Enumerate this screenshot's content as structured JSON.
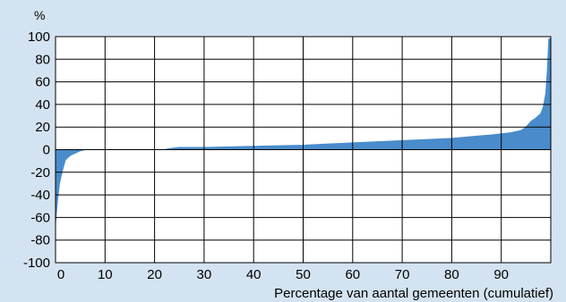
{
  "chart_data": {
    "type": "area",
    "title": "",
    "ylabel": "%",
    "xlabel": "Percentage van aantal gemeenten (cumulatief)",
    "xlim": [
      0,
      100
    ],
    "ylim": [
      -100,
      100
    ],
    "grid": true,
    "colors": {
      "background": "#d4e3f1",
      "plot": "#ffffff",
      "fill": "#4a8ccb",
      "grid": "#000000"
    },
    "x_ticks": [
      0,
      10,
      20,
      30,
      40,
      50,
      60,
      70,
      80,
      90
    ],
    "x_tick_labels": [
      "0",
      "10",
      "20",
      "30",
      "40",
      "50",
      "60",
      "70",
      "80",
      "90"
    ],
    "y_ticks": [
      100,
      80,
      60,
      40,
      20,
      0,
      -20,
      -40,
      -60,
      -80,
      -100
    ],
    "y_tick_labels": [
      "100",
      "80",
      "60",
      "40",
      "20",
      "0",
      "-20",
      "-40",
      "-60",
      "-80",
      "-100"
    ],
    "series": [
      {
        "x": [
          0,
          0.4,
          0.8,
          1.2,
          1.6,
          2,
          2.5,
          3,
          4,
          5,
          6,
          7,
          10,
          15,
          20,
          22,
          23,
          25,
          30,
          35,
          40,
          45,
          50,
          55,
          60,
          65,
          70,
          75,
          80,
          85,
          88,
          90,
          92,
          94,
          95,
          96,
          97,
          98,
          98.5,
          99,
          99.3,
          99.6,
          100
        ],
        "values": [
          -65,
          -45,
          -30,
          -22,
          -15,
          -9,
          -7,
          -5,
          -3,
          -1,
          0,
          0,
          0,
          0,
          0,
          0,
          1,
          2,
          2,
          2.5,
          3,
          3.5,
          4,
          5,
          6,
          7,
          8,
          9,
          10,
          12,
          13,
          14,
          15,
          17,
          20,
          25,
          28,
          32,
          38,
          50,
          70,
          98,
          98
        ]
      }
    ]
  }
}
